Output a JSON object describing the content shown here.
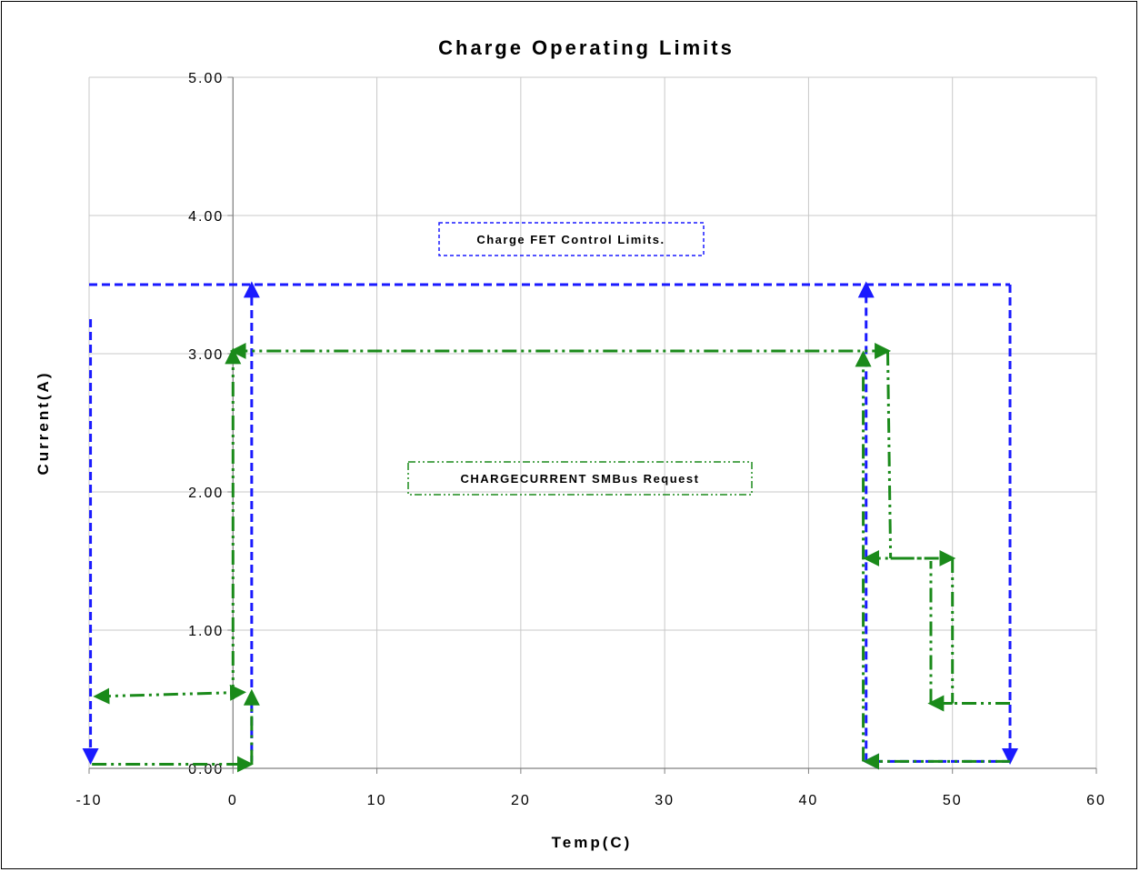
{
  "chart_data": {
    "type": "line",
    "title": "Charge Operating Limits",
    "xlabel": "Temp(C)",
    "ylabel": "Current(A)",
    "xlim": [
      -10,
      60
    ],
    "ylim": [
      0,
      5
    ],
    "x_ticks": [
      "-10",
      "0",
      "10",
      "20",
      "30",
      "40",
      "50",
      "60"
    ],
    "y_ticks": [
      "0.00",
      "1.00",
      "2.00",
      "3.00",
      "4.00",
      "5.00"
    ],
    "grid": true,
    "colors": {
      "fet": "#1a1aff",
      "smbus": "#1a8a1a",
      "grid": "#c8c8c8",
      "axis": "#808080"
    },
    "series": [
      {
        "name": "Charge FET Control Limits.",
        "style": "dashed",
        "x": [
          -9.9,
          -9.9,
          -10,
          54,
          54,
          44,
          44,
          1.3,
          1.3
        ],
        "y": [
          3.25,
          0.05,
          3.5,
          3.5,
          0.05,
          0.05,
          3.5,
          3.5,
          0.05
        ]
      },
      {
        "name": "CHARGECURRENT SMBus Request",
        "style": "dash-dot-dot",
        "x": [
          -9.8,
          0,
          0,
          45.5,
          45.5,
          50,
          50,
          48.5,
          48.5,
          54,
          43.8,
          43.8,
          0.7,
          -9.5
        ],
        "y": [
          0.03,
          0.03,
          3.02,
          3.02,
          1.52,
          1.52,
          0.47,
          0.47,
          1.5,
          0.05,
          0.05,
          3.0,
          0.55,
          0.52
        ]
      }
    ]
  }
}
